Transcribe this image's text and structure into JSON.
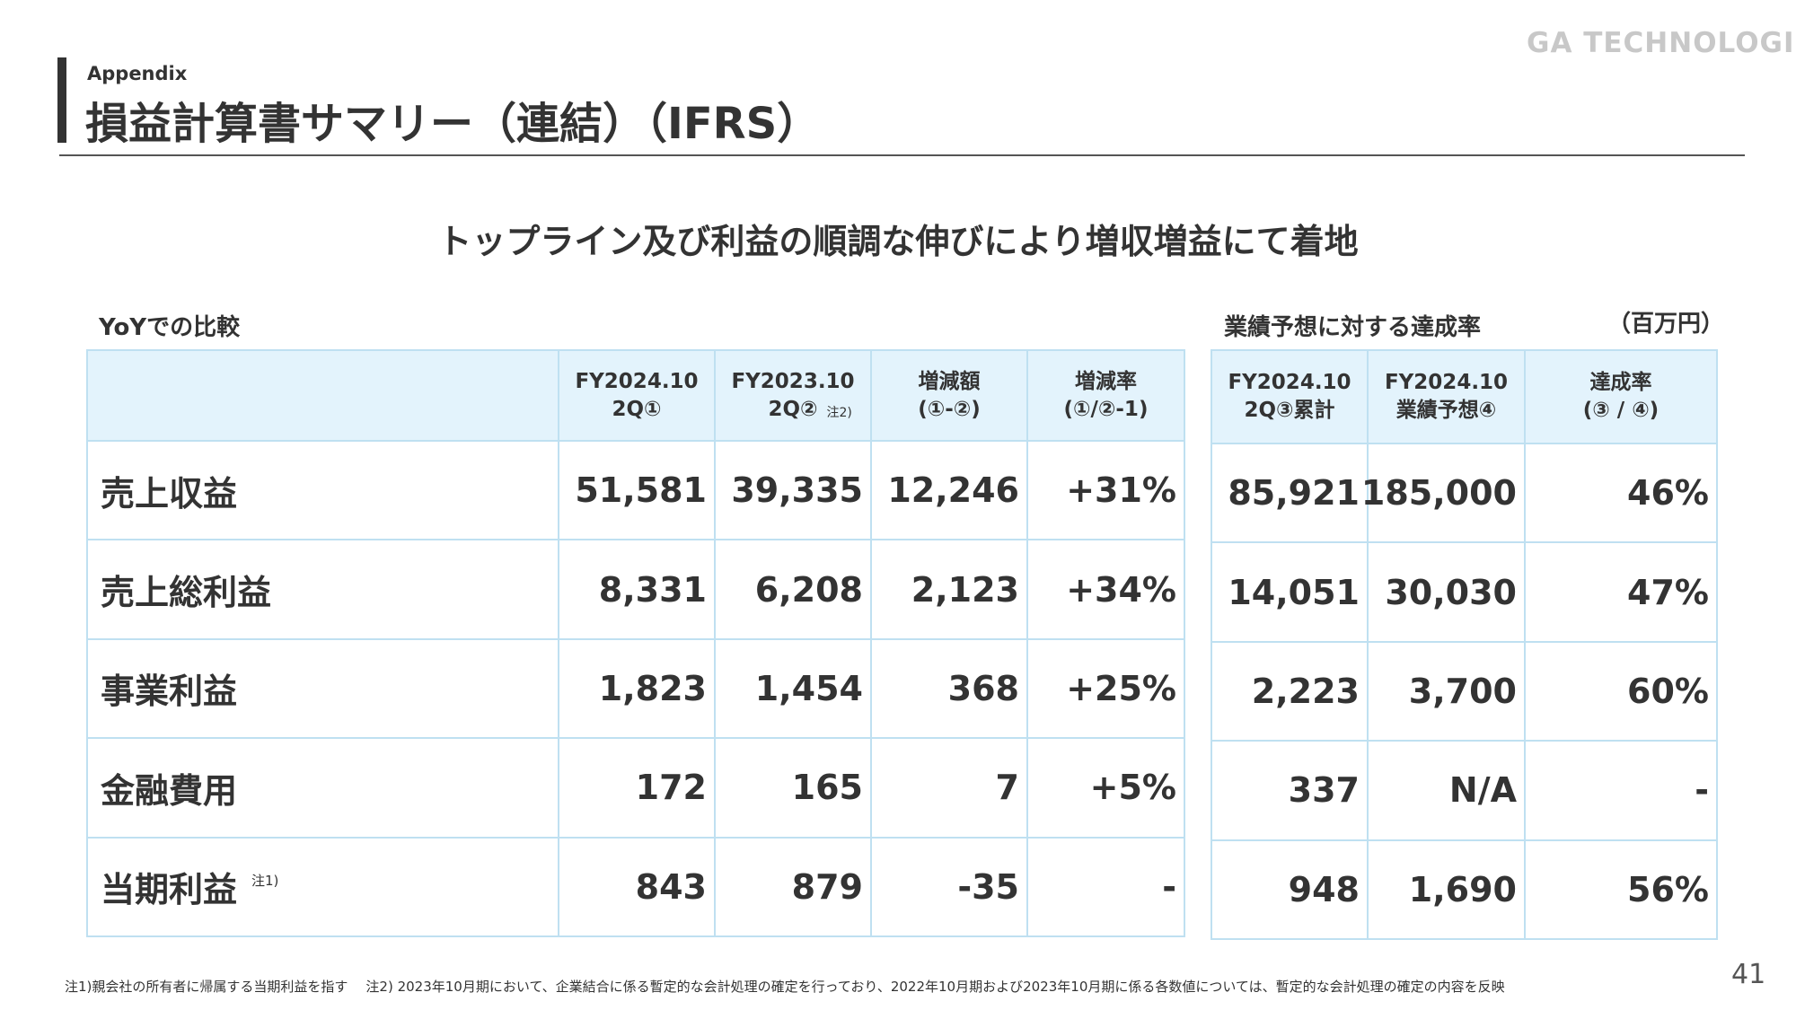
{
  "header": {
    "label": "Appendix",
    "title": "損益計算書サマリー（連結）（IFRS）",
    "logo": "GA TECHNOLOGIES"
  },
  "headline": "トップライン及び利益の順調な伸びにより増収増益にて着地",
  "yoy": {
    "caption": "YoYでの比較",
    "columns": [
      {
        "lines": [
          "FY2024.10",
          "2Q①"
        ]
      },
      {
        "lines": [
          "FY2023.10",
          "2Q②"
        ],
        "note": "注2)"
      },
      {
        "lines": [
          "増減額",
          "(①-②)"
        ]
      },
      {
        "lines": [
          "増減率",
          "(①/②-1)"
        ]
      }
    ],
    "rows": [
      {
        "label": "売上収益",
        "cells": [
          "51,581",
          "39,335",
          "12,246",
          "+31%"
        ]
      },
      {
        "label": "売上総利益",
        "cells": [
          "8,331",
          "6,208",
          "2,123",
          "+34%"
        ]
      },
      {
        "label": "事業利益",
        "cells": [
          "1,823",
          "1,454",
          "368",
          "+25%"
        ]
      },
      {
        "label": "金融費用",
        "cells": [
          "172",
          "165",
          "7",
          "+5%"
        ]
      },
      {
        "label": "当期利益",
        "note": "注1)",
        "cells": [
          "843",
          "879",
          "-35",
          "-"
        ]
      }
    ]
  },
  "forecast": {
    "caption": "業績予想に対する達成率",
    "unit": "（百万円）",
    "columns": [
      {
        "lines": [
          "FY2024.10",
          "2Q③累計"
        ]
      },
      {
        "lines": [
          "FY2024.10",
          "業績予想④"
        ]
      },
      {
        "lines": [
          "達成率",
          "(③ / ④)"
        ]
      }
    ],
    "rows": [
      {
        "cells": [
          "85,921",
          "185,000",
          "46%"
        ]
      },
      {
        "cells": [
          "14,051",
          "30,030",
          "47%"
        ]
      },
      {
        "cells": [
          "2,223",
          "3,700",
          "60%"
        ]
      },
      {
        "cells": [
          "337",
          "N/A",
          "-"
        ]
      },
      {
        "cells": [
          "948",
          "1,690",
          "56%"
        ]
      }
    ]
  },
  "footnotes": [
    "注1)親会社の所有者に帰属する当期利益を指す",
    "注2) 2023年10月期において、企業結合に係る暫定的な会計処理の確定を行っており、2022年10月期および2023年10月期に係る各数値については、暫定的な会計処理の確定の内容を反映"
  ],
  "page_number": "41"
}
